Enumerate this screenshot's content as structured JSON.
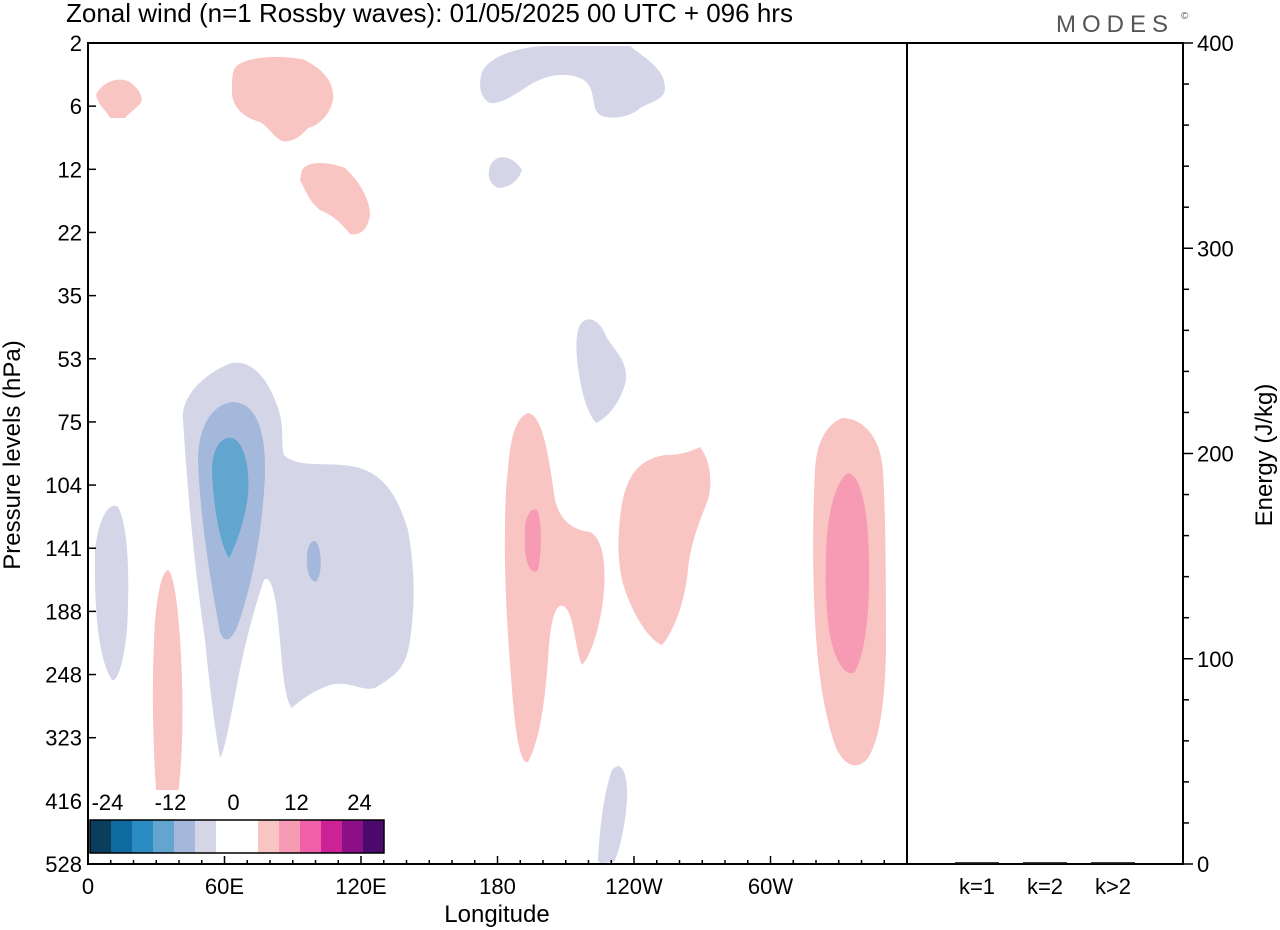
{
  "title": "Zonal wind (n=1 Rossby waves):  01/05/2025  00 UTC  + 096 hrs",
  "logo": "MODES",
  "logo_mark": "©",
  "chart_data": [
    {
      "type": "contour",
      "xlabel": "Longitude",
      "ylabel": "Pressure levels (hPa)",
      "x_ticks": [
        "0",
        "60E",
        "120E",
        "180",
        "120W",
        "60W"
      ],
      "x_tick_degrees": [
        0,
        60,
        120,
        180,
        240,
        300
      ],
      "xlim": [
        0,
        360
      ],
      "y_ticks": [
        "2",
        "6",
        "12",
        "22",
        "35",
        "53",
        "75",
        "104",
        "141",
        "188",
        "248",
        "323",
        "416",
        "528"
      ],
      "colorbar": {
        "tick_labels": [
          "-24",
          "-12",
          "0",
          "12",
          "24"
        ],
        "colors": [
          "#0b3d5c",
          "#0f6aa0",
          "#2b8cc4",
          "#62a5cf",
          "#a3b8da",
          "#d4d6e8",
          "#ffffff",
          "#ffffff",
          "#f9c5c3",
          "#f79ab3",
          "#f060a8",
          "#cd2196",
          "#8c0f86",
          "#4c0a6e"
        ]
      },
      "colors": {
        "neg_weak": "#d4d6e8",
        "neg_mid": "#a3b8da",
        "neg_strong": "#62a5cf",
        "pos_weak": "#f9c5c3",
        "pos_mid": "#f79ab3"
      }
    },
    {
      "type": "bar",
      "ylabel": "Energy (J/kg)",
      "categories": [
        "k=1",
        "k=2",
        "k>2"
      ],
      "values": [
        0.5,
        0.3,
        0.4
      ],
      "ylim": [
        0,
        400
      ],
      "y_ticks": [
        "0",
        "100",
        "200",
        "300",
        "400"
      ]
    }
  ]
}
